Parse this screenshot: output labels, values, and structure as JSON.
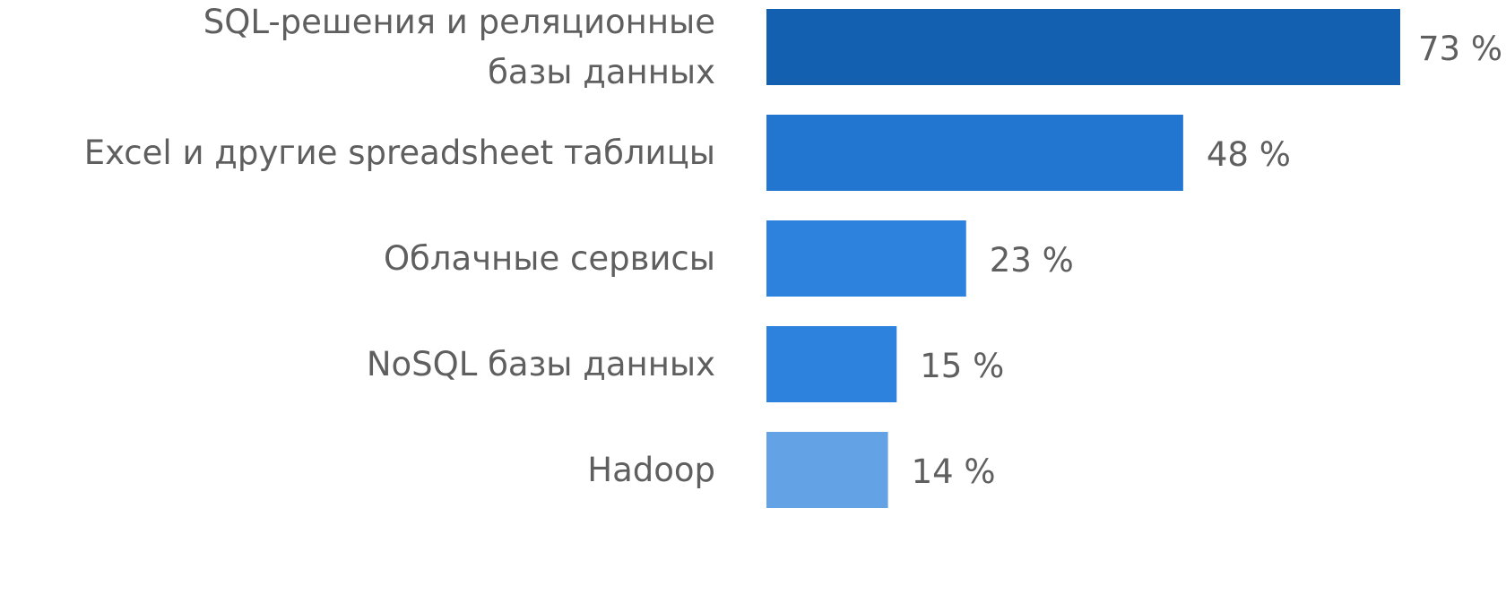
{
  "chart_data": {
    "type": "bar",
    "orientation": "horizontal",
    "categories": [
      [
        "SQL-решения и реляционные",
        "базы данных"
      ],
      [
        "Excel и другие spreadsheet таблицы"
      ],
      [
        "Облачные сервисы"
      ],
      [
        "NoSQL базы данных"
      ],
      [
        "Hadoop"
      ]
    ],
    "values": [
      73,
      48,
      23,
      15,
      14
    ],
    "value_labels": [
      "73 %",
      "48 %",
      "23 %",
      "15 %",
      "14 %"
    ],
    "bar_colors": [
      "#1460b0",
      "#2376d0",
      "#2d82de",
      "#2d82de",
      "#64a2e6"
    ],
    "xlim": [
      0,
      73
    ],
    "title": "",
    "xlabel": "",
    "ylabel": "",
    "grid": false,
    "legend": "none"
  }
}
